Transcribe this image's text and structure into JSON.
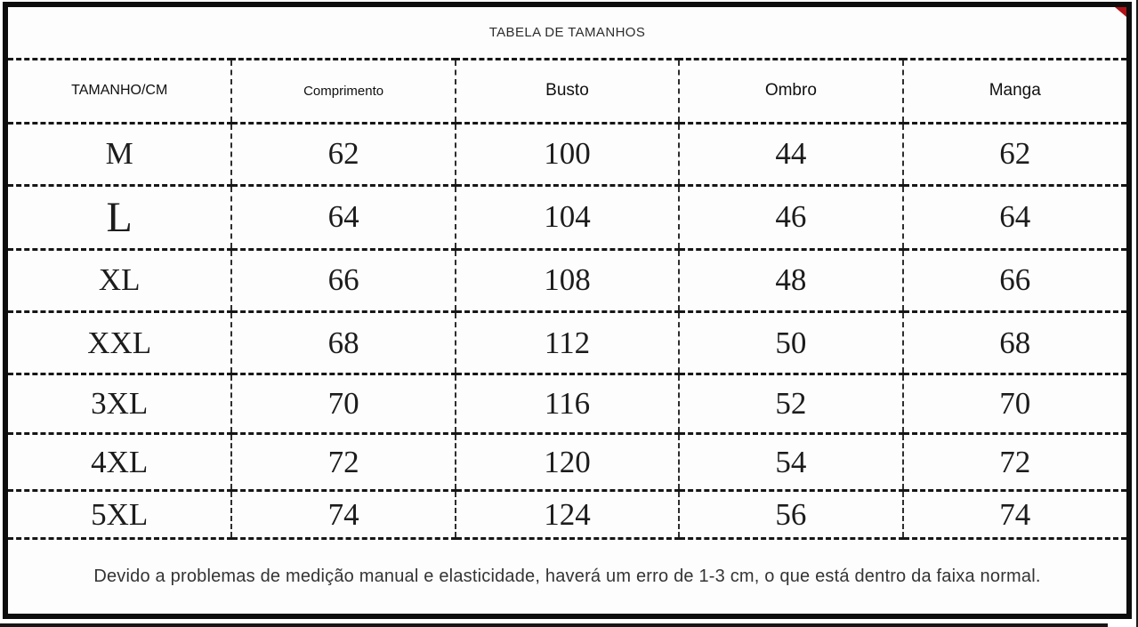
{
  "title": "TABELA DE TAMANHOS",
  "table": {
    "columns": [
      {
        "label": "TAMANHO/CM"
      },
      {
        "label": "Comprimento"
      },
      {
        "label": "Busto"
      },
      {
        "label": "Ombro"
      },
      {
        "label": "Manga"
      }
    ],
    "rows": [
      {
        "size": "M",
        "comprimento": "62",
        "busto": "100",
        "ombro": "44",
        "manga": "62"
      },
      {
        "size": "L",
        "comprimento": "64",
        "busto": "104",
        "ombro": "46",
        "manga": "64"
      },
      {
        "size": "XL",
        "comprimento": "66",
        "busto": "108",
        "ombro": "48",
        "manga": "66"
      },
      {
        "size": "XXL",
        "comprimento": "68",
        "busto": "112",
        "ombro": "50",
        "manga": "68"
      },
      {
        "size": "3XL",
        "comprimento": "70",
        "busto": "116",
        "ombro": "52",
        "manga": "70"
      },
      {
        "size": "4XL",
        "comprimento": "72",
        "busto": "120",
        "ombro": "54",
        "manga": "72"
      },
      {
        "size": "5XL",
        "comprimento": "74",
        "busto": "124",
        "ombro": "56",
        "manga": "74"
      }
    ]
  },
  "footer_note": "Devido a problemas de medição manual e elasticidade, haverá um erro de 1-3 cm, o que está dentro da faixa normal.",
  "colors": {
    "comprimento_header_text": "#2b3152",
    "corner_marker_red": "#b11218",
    "grid_lines": "#161616",
    "background": "#fdfdfd"
  }
}
